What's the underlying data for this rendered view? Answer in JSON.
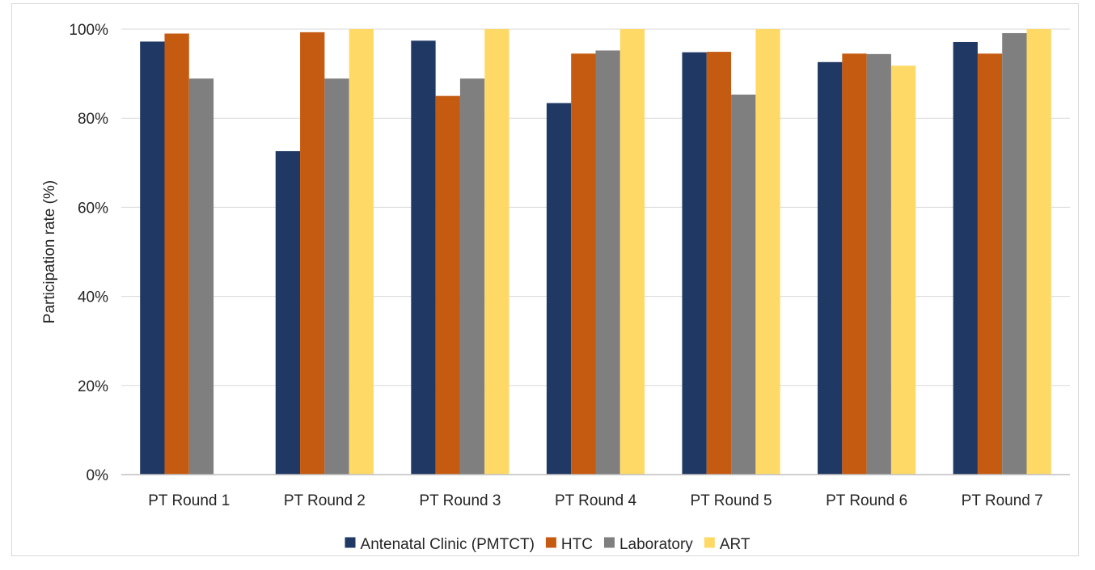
{
  "chart_data": {
    "type": "bar",
    "title": "",
    "xlabel": "",
    "ylabel": "Participation rate (%)",
    "ylim": [
      0,
      100
    ],
    "y_ticks": [
      "0%",
      "20%",
      "40%",
      "60%",
      "80%",
      "100%"
    ],
    "y_tick_values": [
      0,
      20,
      40,
      60,
      80,
      100
    ],
    "grid": "horizontal",
    "legend_position": "bottom",
    "categories": [
      "PT Round 1",
      "PT Round 2",
      "PT Round 3",
      "PT Round 4",
      "PT Round 5",
      "PT Round 6",
      "PT Round 7"
    ],
    "series": [
      {
        "name": "Antenatal Clinic (PMTCT)",
        "color": "#203864",
        "values": [
          97.2,
          72.6,
          97.4,
          83.4,
          94.8,
          92.6,
          97.1
        ]
      },
      {
        "name": "HTC",
        "color": "#c55a11",
        "values": [
          99.0,
          99.3,
          85.0,
          94.5,
          94.9,
          94.5,
          94.5
        ]
      },
      {
        "name": "Laboratory",
        "color": "#7f7f7f",
        "values": [
          88.9,
          88.9,
          88.9,
          95.2,
          85.3,
          94.4,
          99.1
        ]
      },
      {
        "name": "ART",
        "color": "#ffd966",
        "values": [
          null,
          100,
          100,
          100,
          100,
          91.8,
          100
        ]
      }
    ]
  }
}
